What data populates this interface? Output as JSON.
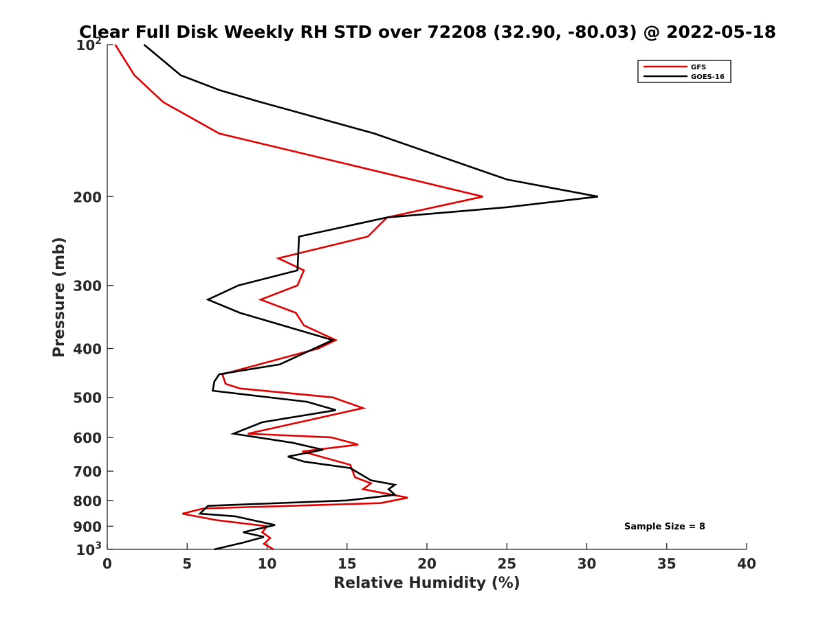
{
  "chart_data": {
    "type": "line",
    "title": "Clear Full Disk Weekly RH STD over 72208 (32.90, -80.03) @ 2022-05-18",
    "xlabel": "Relative Humidity (%)",
    "ylabel": "Pressure (mb)",
    "xlim": [
      0,
      40
    ],
    "ylim": [
      100,
      1000
    ],
    "y_scale": "log",
    "y_reversed": true,
    "x_ticks": [
      "0",
      "5",
      "10",
      "15",
      "20",
      "25",
      "30",
      "35",
      "40"
    ],
    "y_ticks": [
      {
        "value": 100,
        "base": "10",
        "exp": "2"
      },
      {
        "value": 200,
        "base": "200",
        "exp": ""
      },
      {
        "value": 300,
        "base": "300",
        "exp": ""
      },
      {
        "value": 400,
        "base": "400",
        "exp": ""
      },
      {
        "value": 500,
        "base": "500",
        "exp": ""
      },
      {
        "value": 600,
        "base": "600",
        "exp": ""
      },
      {
        "value": 700,
        "base": "700",
        "exp": ""
      },
      {
        "value": 800,
        "base": "800",
        "exp": ""
      },
      {
        "value": 900,
        "base": "900",
        "exp": ""
      },
      {
        "value": 1000,
        "base": "10",
        "exp": "3"
      }
    ],
    "grid": false,
    "legend_position": "top-right",
    "annotation": "Sample Size = 8",
    "series": [
      {
        "name": "GFS",
        "color": "#e00000",
        "points": [
          {
            "x": 0.5,
            "y": 100
          },
          {
            "x": 1.7,
            "y": 115
          },
          {
            "x": 3.5,
            "y": 130
          },
          {
            "x": 7.0,
            "y": 150
          },
          {
            "x": 23.5,
            "y": 200
          },
          {
            "x": 17.5,
            "y": 220
          },
          {
            "x": 16.3,
            "y": 240
          },
          {
            "x": 10.7,
            "y": 265
          },
          {
            "x": 12.3,
            "y": 280
          },
          {
            "x": 11.9,
            "y": 300
          },
          {
            "x": 9.6,
            "y": 320
          },
          {
            "x": 11.8,
            "y": 340
          },
          {
            "x": 12.3,
            "y": 360
          },
          {
            "x": 14.3,
            "y": 385
          },
          {
            "x": 13.2,
            "y": 400
          },
          {
            "x": 7.2,
            "y": 450
          },
          {
            "x": 7.4,
            "y": 470
          },
          {
            "x": 8.3,
            "y": 480
          },
          {
            "x": 14.1,
            "y": 500
          },
          {
            "x": 16.0,
            "y": 525
          },
          {
            "x": 8.8,
            "y": 590
          },
          {
            "x": 14.0,
            "y": 600
          },
          {
            "x": 15.7,
            "y": 620
          },
          {
            "x": 12.2,
            "y": 640
          },
          {
            "x": 15.2,
            "y": 680
          },
          {
            "x": 15.5,
            "y": 720
          },
          {
            "x": 16.5,
            "y": 740
          },
          {
            "x": 16.0,
            "y": 760
          },
          {
            "x": 18.8,
            "y": 790
          },
          {
            "x": 17.1,
            "y": 810
          },
          {
            "x": 6.0,
            "y": 830
          },
          {
            "x": 4.7,
            "y": 850
          },
          {
            "x": 6.8,
            "y": 875
          },
          {
            "x": 10.0,
            "y": 900
          },
          {
            "x": 9.7,
            "y": 925
          },
          {
            "x": 10.2,
            "y": 950
          },
          {
            "x": 9.8,
            "y": 975
          },
          {
            "x": 10.4,
            "y": 1000
          }
        ]
      },
      {
        "name": "GOES-16",
        "color": "#000000",
        "points": [
          {
            "x": 2.3,
            "y": 100
          },
          {
            "x": 4.6,
            "y": 115
          },
          {
            "x": 7.0,
            "y": 123
          },
          {
            "x": 9.6,
            "y": 130
          },
          {
            "x": 16.7,
            "y": 150
          },
          {
            "x": 25.0,
            "y": 185
          },
          {
            "x": 30.7,
            "y": 200
          },
          {
            "x": 25.0,
            "y": 210
          },
          {
            "x": 17.5,
            "y": 220
          },
          {
            "x": 12.0,
            "y": 240
          },
          {
            "x": 11.9,
            "y": 280
          },
          {
            "x": 8.2,
            "y": 300
          },
          {
            "x": 6.3,
            "y": 320
          },
          {
            "x": 8.3,
            "y": 340
          },
          {
            "x": 14.1,
            "y": 385
          },
          {
            "x": 10.8,
            "y": 430
          },
          {
            "x": 7.0,
            "y": 450
          },
          {
            "x": 6.7,
            "y": 465
          },
          {
            "x": 6.6,
            "y": 485
          },
          {
            "x": 12.5,
            "y": 510
          },
          {
            "x": 14.3,
            "y": 530
          },
          {
            "x": 9.7,
            "y": 560
          },
          {
            "x": 7.9,
            "y": 590
          },
          {
            "x": 11.6,
            "y": 615
          },
          {
            "x": 13.5,
            "y": 635
          },
          {
            "x": 11.3,
            "y": 655
          },
          {
            "x": 12.3,
            "y": 670
          },
          {
            "x": 15.2,
            "y": 690
          },
          {
            "x": 16.5,
            "y": 730
          },
          {
            "x": 18.0,
            "y": 745
          },
          {
            "x": 17.6,
            "y": 760
          },
          {
            "x": 18.0,
            "y": 780
          },
          {
            "x": 15.0,
            "y": 800
          },
          {
            "x": 6.3,
            "y": 820
          },
          {
            "x": 5.8,
            "y": 850
          },
          {
            "x": 8.0,
            "y": 860
          },
          {
            "x": 10.5,
            "y": 895
          },
          {
            "x": 8.5,
            "y": 925
          },
          {
            "x": 9.8,
            "y": 945
          },
          {
            "x": 8.5,
            "y": 970
          },
          {
            "x": 6.7,
            "y": 1000
          }
        ]
      }
    ]
  }
}
